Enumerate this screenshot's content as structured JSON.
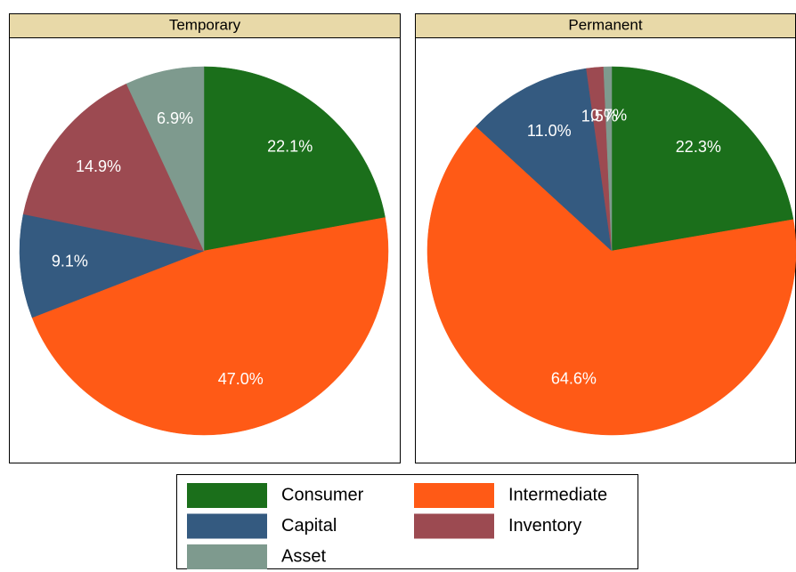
{
  "chart_data": [
    {
      "type": "pie",
      "title": "Temporary",
      "categories": [
        "Consumer",
        "Intermediate",
        "Capital",
        "Inventory",
        "Asset"
      ],
      "values": [
        22.1,
        47.0,
        9.1,
        14.9,
        6.9
      ],
      "value_labels": [
        "22.1%",
        "47.0%",
        "9.1%",
        "14.9%",
        "6.9%"
      ],
      "colors": [
        "#1b6f1b",
        "#ff5a16",
        "#345a80",
        "#9c4a51",
        "#7e9a8e"
      ]
    },
    {
      "type": "pie",
      "title": "Permanent",
      "categories": [
        "Consumer",
        "Intermediate",
        "Capital",
        "Inventory",
        "Asset"
      ],
      "values": [
        22.3,
        64.6,
        11.0,
        1.5,
        0.7
      ],
      "value_labels": [
        "22.3%",
        "64.6%",
        "11.0%",
        "1.5%",
        "0.7%"
      ],
      "colors": [
        "#1b6f1b",
        "#ff5a16",
        "#345a80",
        "#9c4a51",
        "#7e9a8e"
      ]
    }
  ]
}
